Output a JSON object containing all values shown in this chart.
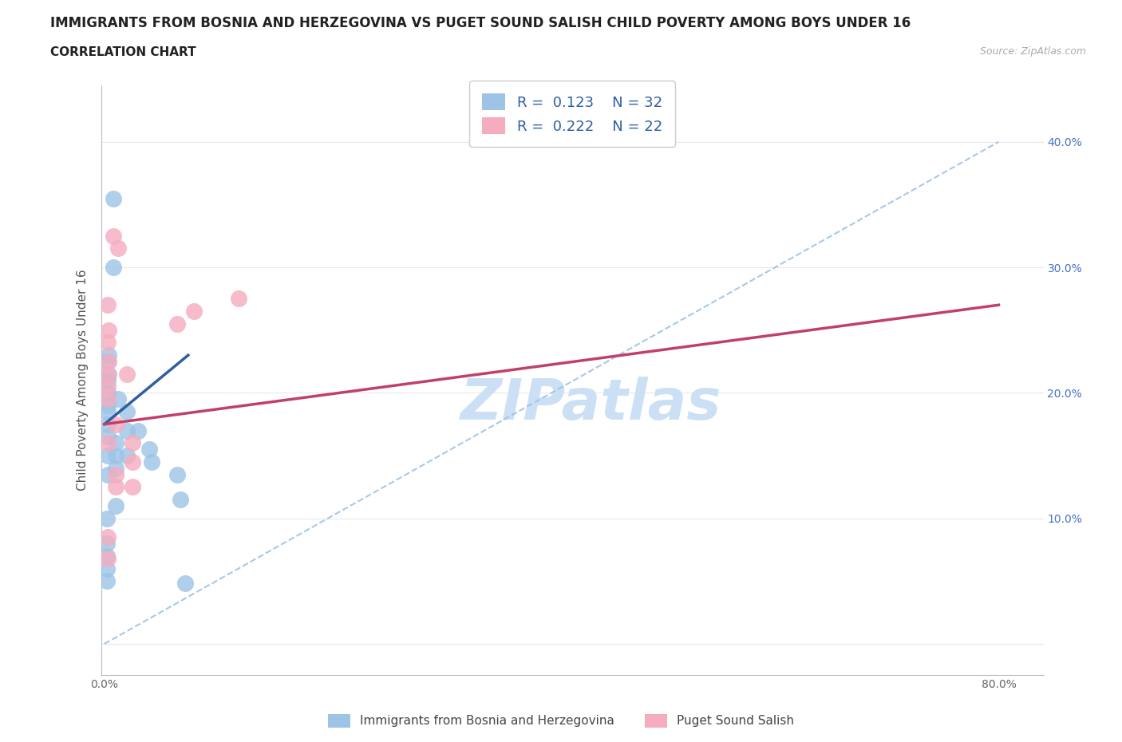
{
  "title": "IMMIGRANTS FROM BOSNIA AND HERZEGOVINA VS PUGET SOUND SALISH CHILD POVERTY AMONG BOYS UNDER 16",
  "subtitle": "CORRELATION CHART",
  "source": "Source: ZipAtlas.com",
  "ylabel": "Child Poverty Among Boys Under 16",
  "watermark": "ZIPatlas",
  "blue_R": 0.123,
  "blue_N": 32,
  "pink_R": 0.222,
  "pink_N": 22,
  "blue_scatter_color": "#9dc3e6",
  "pink_scatter_color": "#f4acbe",
  "blue_line_color": "#2e5fa3",
  "pink_line_color": "#c0406a",
  "dashed_line_color": "#9dc3e6",
  "watermark_color": "#cce0f5",
  "legend_color": "#2e5fa3",
  "blue_scatter": [
    [
      0.008,
      0.355
    ],
    [
      0.012,
      0.195
    ],
    [
      0.008,
      0.3
    ],
    [
      0.004,
      0.23
    ],
    [
      0.003,
      0.225
    ],
    [
      0.004,
      0.215
    ],
    [
      0.003,
      0.21
    ],
    [
      0.003,
      0.2
    ],
    [
      0.003,
      0.19
    ],
    [
      0.003,
      0.185
    ],
    [
      0.003,
      0.175
    ],
    [
      0.003,
      0.165
    ],
    [
      0.003,
      0.15
    ],
    [
      0.003,
      0.135
    ],
    [
      0.002,
      0.1
    ],
    [
      0.002,
      0.08
    ],
    [
      0.002,
      0.07
    ],
    [
      0.002,
      0.06
    ],
    [
      0.002,
      0.05
    ],
    [
      0.01,
      0.16
    ],
    [
      0.01,
      0.15
    ],
    [
      0.01,
      0.14
    ],
    [
      0.01,
      0.11
    ],
    [
      0.02,
      0.185
    ],
    [
      0.02,
      0.15
    ],
    [
      0.02,
      0.17
    ],
    [
      0.03,
      0.17
    ],
    [
      0.04,
      0.155
    ],
    [
      0.042,
      0.145
    ],
    [
      0.065,
      0.135
    ],
    [
      0.068,
      0.115
    ],
    [
      0.072,
      0.048
    ]
  ],
  "pink_scatter": [
    [
      0.008,
      0.325
    ],
    [
      0.012,
      0.315
    ],
    [
      0.003,
      0.27
    ],
    [
      0.004,
      0.25
    ],
    [
      0.003,
      0.24
    ],
    [
      0.004,
      0.225
    ],
    [
      0.003,
      0.215
    ],
    [
      0.003,
      0.205
    ],
    [
      0.003,
      0.195
    ],
    [
      0.003,
      0.16
    ],
    [
      0.003,
      0.085
    ],
    [
      0.003,
      0.068
    ],
    [
      0.01,
      0.175
    ],
    [
      0.01,
      0.135
    ],
    [
      0.01,
      0.125
    ],
    [
      0.02,
      0.215
    ],
    [
      0.025,
      0.16
    ],
    [
      0.025,
      0.145
    ],
    [
      0.025,
      0.125
    ],
    [
      0.065,
      0.255
    ],
    [
      0.08,
      0.265
    ],
    [
      0.12,
      0.275
    ]
  ],
  "blue_line_x0": 0.0,
  "blue_line_y0": 0.175,
  "blue_line_x1": 0.075,
  "blue_line_y1": 0.23,
  "pink_line_x0": 0.0,
  "pink_line_y0": 0.175,
  "pink_line_x1": 0.8,
  "pink_line_y1": 0.27,
  "xlim_min": -0.003,
  "xlim_max": 0.84,
  "ylim_min": -0.025,
  "ylim_max": 0.445,
  "xtick_positions": [
    0.0,
    0.1,
    0.2,
    0.3,
    0.4,
    0.5,
    0.6,
    0.7,
    0.8
  ],
  "xtick_labels": [
    "0.0%",
    "",
    "",
    "",
    "",
    "",
    "",
    "",
    "80.0%"
  ],
  "ytick_positions": [
    0.0,
    0.1,
    0.2,
    0.3,
    0.4
  ],
  "ytick_labels_right": [
    "",
    "10.0%",
    "20.0%",
    "30.0%",
    "40.0%"
  ],
  "title_fontsize": 12,
  "subtitle_fontsize": 11,
  "ylabel_fontsize": 11,
  "tick_fontsize": 10,
  "legend_fontsize": 13,
  "watermark_fontsize": 52,
  "background": "#ffffff",
  "grid_color": "#e8e8e8"
}
